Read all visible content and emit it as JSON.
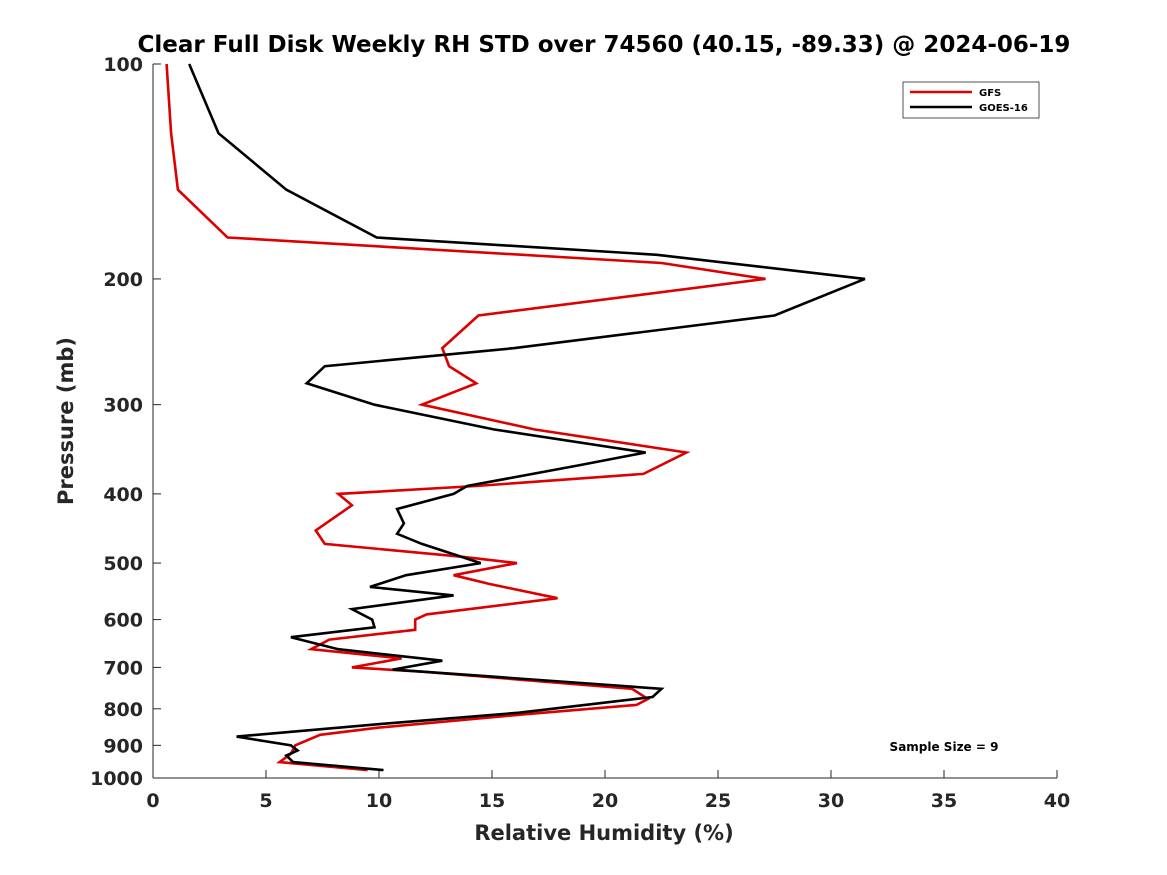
{
  "chart_data": {
    "type": "line",
    "title": "Clear Full Disk Weekly RH STD over 74560 (40.15, -89.33) @ 2024-06-19",
    "xlabel": "Relative Humidity (%)",
    "ylabel": "Pressure (mb)",
    "xlim": [
      0,
      40
    ],
    "ylim": [
      100,
      1000
    ],
    "yscale": "log",
    "y_reversed": true,
    "xticks": [
      0,
      5,
      10,
      15,
      20,
      25,
      30,
      35,
      40
    ],
    "yticks": [
      100,
      200,
      300,
      400,
      500,
      600,
      700,
      800,
      900,
      1000
    ],
    "grid": false,
    "legend_position": "top-right",
    "annotation": "Sample Size = 9",
    "series": [
      {
        "name": "GFS",
        "color": "#dd0000",
        "points": [
          [
            0.6,
            100
          ],
          [
            0.8,
            125
          ],
          [
            1.1,
            150
          ],
          [
            3.3,
            175
          ],
          [
            22.5,
            190
          ],
          [
            27.1,
            200
          ],
          [
            14.4,
            225
          ],
          [
            12.8,
            250
          ],
          [
            13.1,
            265
          ],
          [
            14.3,
            280
          ],
          [
            11.9,
            300
          ],
          [
            16.9,
            325
          ],
          [
            23.6,
            350
          ],
          [
            21.7,
            375
          ],
          [
            14.3,
            390
          ],
          [
            8.2,
            400
          ],
          [
            8.8,
            415
          ],
          [
            7.2,
            450
          ],
          [
            7.6,
            470
          ],
          [
            13.7,
            490
          ],
          [
            16.1,
            500
          ],
          [
            13.3,
            520
          ],
          [
            14.9,
            535
          ],
          [
            17.9,
            560
          ],
          [
            12.1,
            590
          ],
          [
            11.6,
            600
          ],
          [
            11.6,
            620
          ],
          [
            7.8,
            640
          ],
          [
            7.0,
            660
          ],
          [
            11.0,
            680
          ],
          [
            8.8,
            700
          ],
          [
            12.0,
            710
          ],
          [
            21.2,
            750
          ],
          [
            21.9,
            775
          ],
          [
            21.4,
            790
          ],
          [
            16.3,
            815
          ],
          [
            10.0,
            850
          ],
          [
            7.4,
            870
          ],
          [
            6.3,
            900
          ],
          [
            6.1,
            925
          ],
          [
            5.6,
            950
          ],
          [
            9.5,
            975
          ]
        ]
      },
      {
        "name": "GOES-16",
        "color": "#000000",
        "points": [
          [
            1.6,
            100
          ],
          [
            2.9,
            125
          ],
          [
            5.9,
            150
          ],
          [
            9.9,
            175
          ],
          [
            22.3,
            185
          ],
          [
            31.5,
            200
          ],
          [
            27.5,
            225
          ],
          [
            16.0,
            250
          ],
          [
            7.6,
            265
          ],
          [
            6.8,
            280
          ],
          [
            9.8,
            300
          ],
          [
            15.1,
            325
          ],
          [
            21.8,
            350
          ],
          [
            18.8,
            365
          ],
          [
            13.9,
            390
          ],
          [
            13.3,
            400
          ],
          [
            10.8,
            420
          ],
          [
            11.1,
            440
          ],
          [
            10.8,
            455
          ],
          [
            11.9,
            470
          ],
          [
            14.5,
            500
          ],
          [
            11.2,
            520
          ],
          [
            9.6,
            540
          ],
          [
            13.3,
            555
          ],
          [
            8.8,
            580
          ],
          [
            9.7,
            600
          ],
          [
            9.8,
            615
          ],
          [
            6.1,
            635
          ],
          [
            8.2,
            660
          ],
          [
            12.8,
            685
          ],
          [
            10.6,
            705
          ],
          [
            14.7,
            720
          ],
          [
            22.5,
            750
          ],
          [
            22.1,
            770
          ],
          [
            16.2,
            810
          ],
          [
            10.1,
            840
          ],
          [
            3.7,
            875
          ],
          [
            6.1,
            900
          ],
          [
            6.4,
            915
          ],
          [
            5.9,
            930
          ],
          [
            6.2,
            950
          ],
          [
            10.2,
            975
          ]
        ]
      }
    ]
  }
}
